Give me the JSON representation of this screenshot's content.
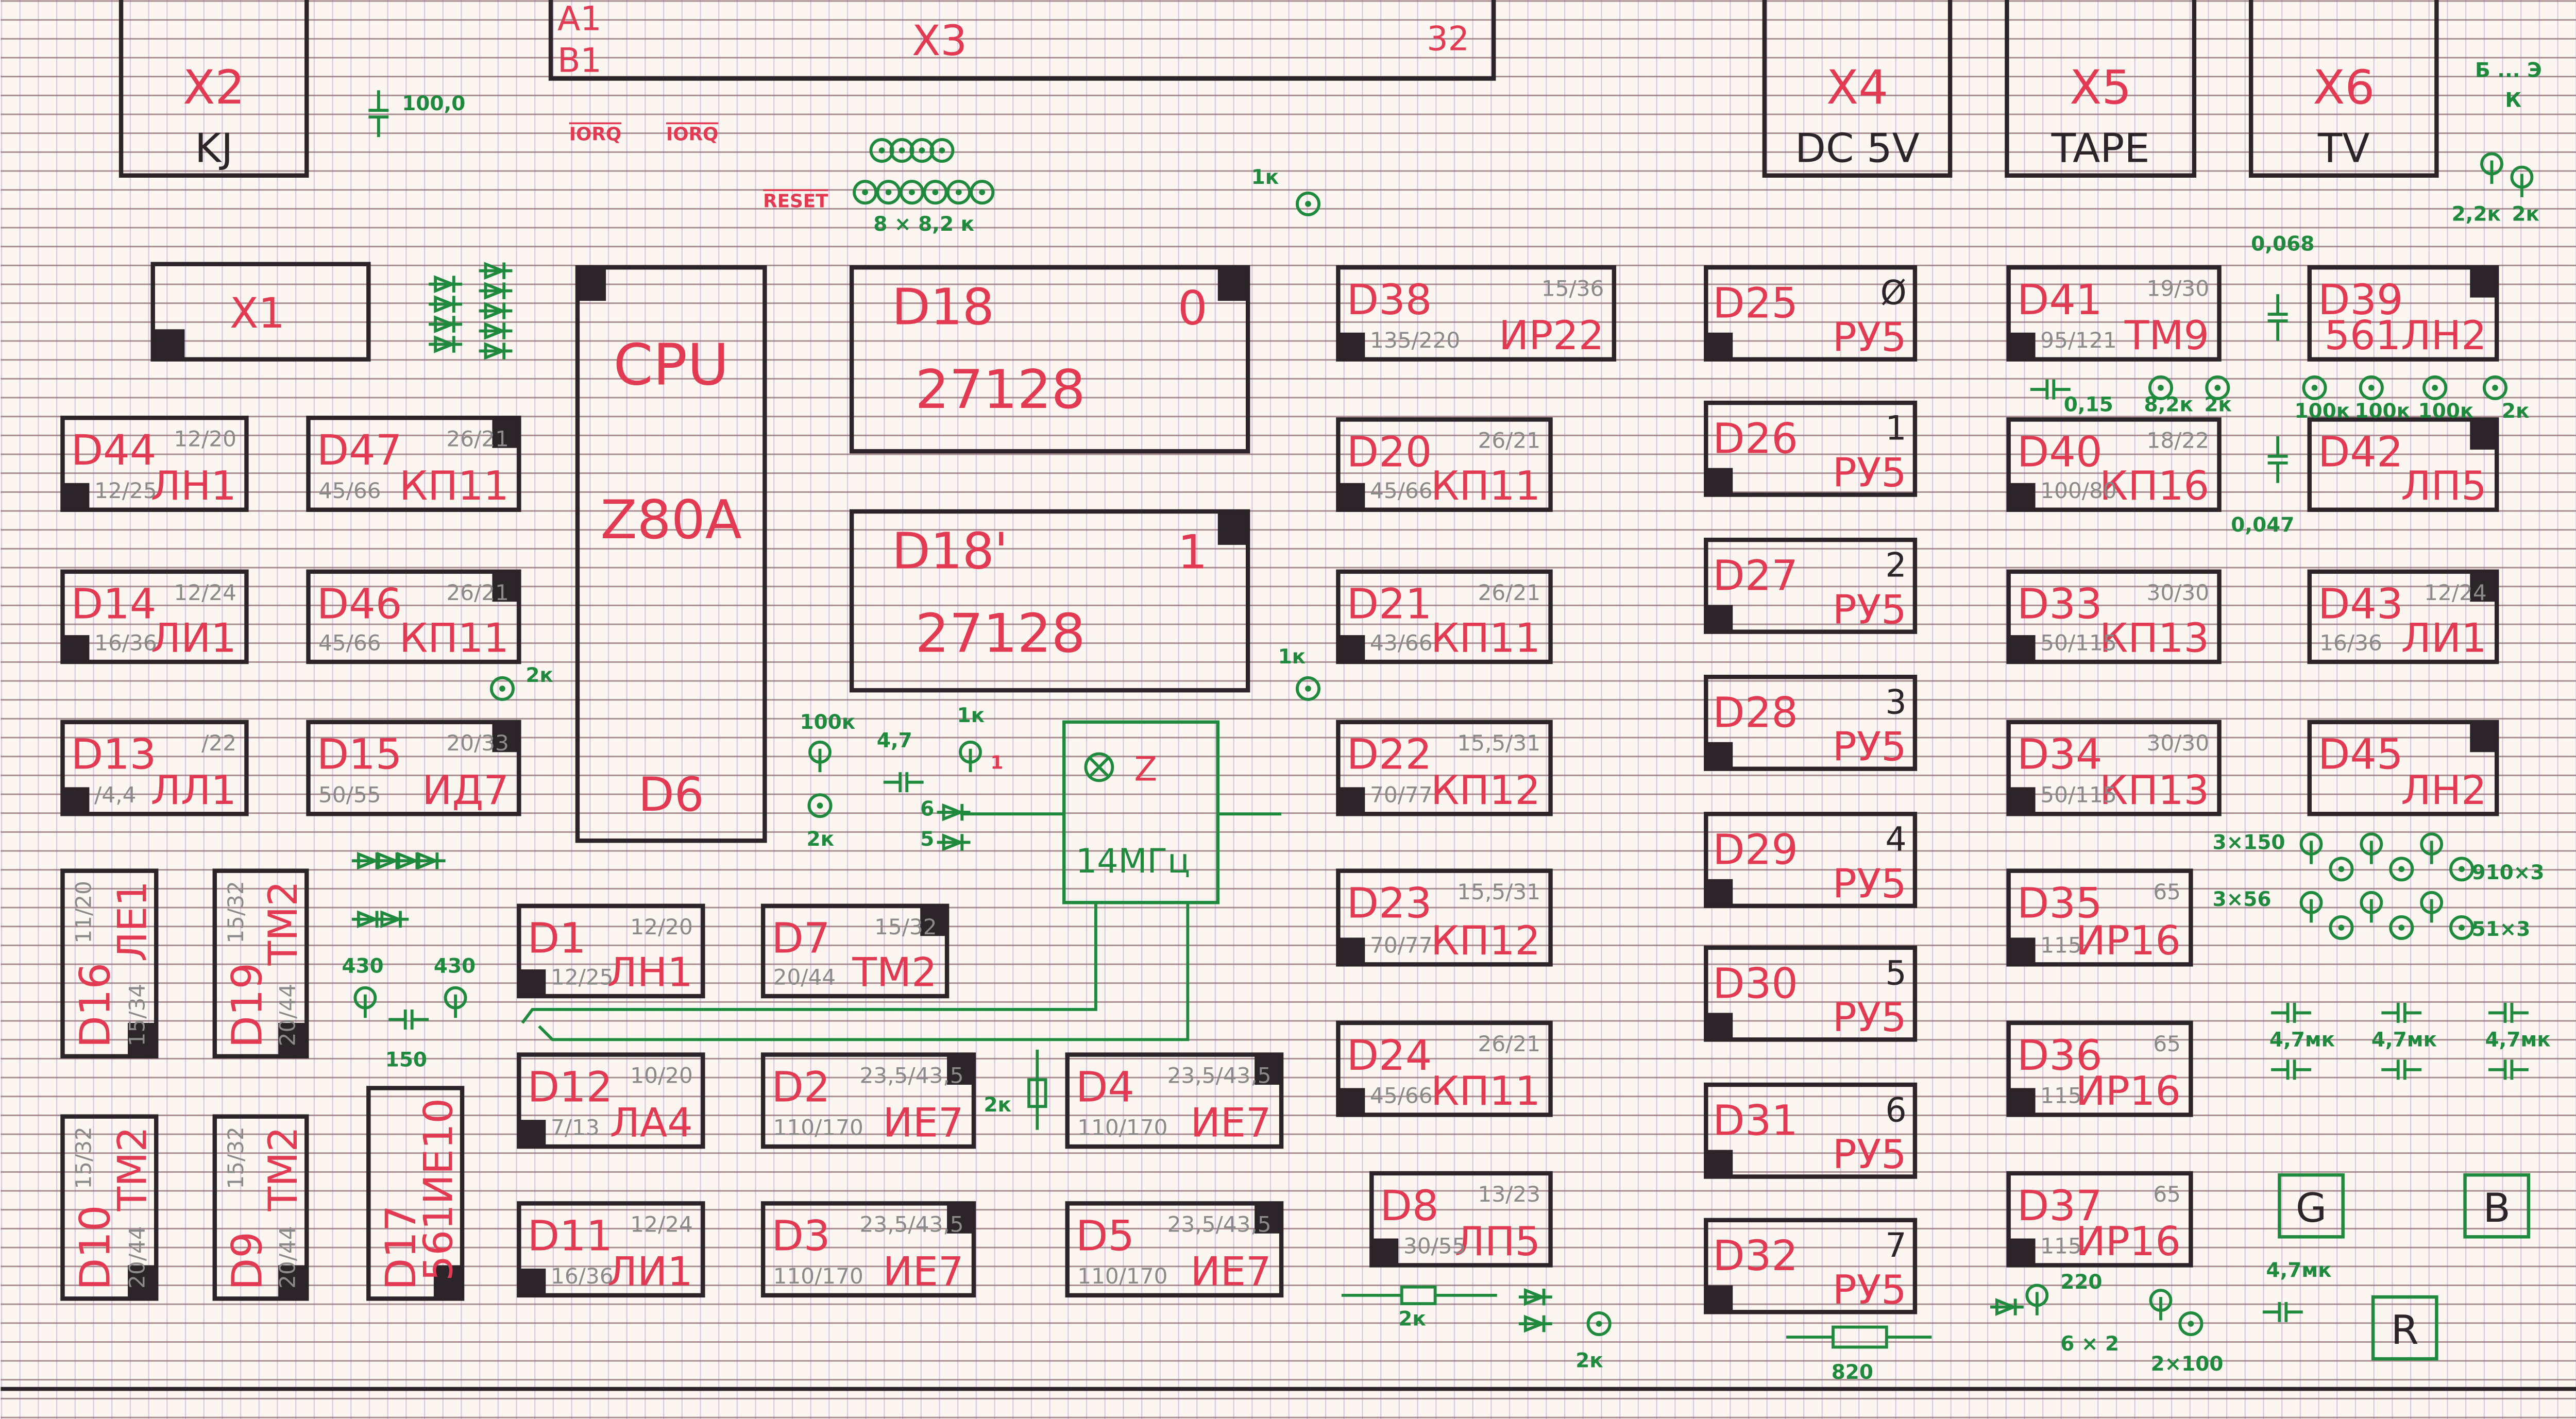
{
  "colors": {
    "paper": "#fbf6ef",
    "ink_red": "#e23a52",
    "ink_black": "#2b2428",
    "ink_green": "#1f8a3e",
    "ink_pencil": "#8a8a8a"
  },
  "connectors": [
    {
      "id": "X2",
      "label": "KJ"
    },
    {
      "id": "X4",
      "label": "DC 5V"
    },
    {
      "id": "X5",
      "label": "TAPE"
    },
    {
      "id": "X6",
      "label": "TV"
    }
  ],
  "x1": {
    "id": "X1"
  },
  "x3": {
    "id": "X3",
    "pin_a": "A1",
    "pin_b": "B1",
    "count": "32"
  },
  "cpu": {
    "title": "CPU",
    "model": "Z80A",
    "ref": "D6"
  },
  "roms": [
    {
      "id": "D18",
      "part": "27128",
      "index": "0"
    },
    {
      "id": "D18'",
      "part": "27128",
      "index": "1"
    }
  ],
  "quartz": {
    "symbol": "Z",
    "freq": "14МГц"
  },
  "chips": [
    {
      "id": "D44",
      "type": "ЛН1",
      "top": "12/20",
      "bottom": "12/25"
    },
    {
      "id": "D47",
      "type": "КП11",
      "top": "26/21",
      "bottom": "45/66"
    },
    {
      "id": "D14",
      "type": "ЛИ1",
      "top": "12/24",
      "bottom": "16/36"
    },
    {
      "id": "D46",
      "type": "КП11",
      "top": "26/21",
      "bottom": "45/66"
    },
    {
      "id": "D13",
      "type": "ЛЛ1",
      "top": "/22",
      "bottom": "/4,4"
    },
    {
      "id": "D15",
      "type": "ИД7",
      "top": "20/33",
      "bottom": "50/55"
    },
    {
      "id": "D1",
      "type": "ЛН1",
      "top": "12/20",
      "bottom": "12/25"
    },
    {
      "id": "D7",
      "type": "ТМ2",
      "top": "15/32",
      "bottom": "20/44"
    },
    {
      "id": "D12",
      "type": "ЛА4",
      "top": "10/20",
      "bottom": "7/13"
    },
    {
      "id": "D2",
      "type": "ИЕ7",
      "top": "23,5/43,5",
      "bottom": "110/170"
    },
    {
      "id": "D4",
      "type": "ИЕ7",
      "top": "23,5/43,5",
      "bottom": "110/170"
    },
    {
      "id": "D11",
      "type": "ЛИ1",
      "top": "12/24",
      "bottom": "16/36"
    },
    {
      "id": "D3",
      "type": "ИЕ7",
      "top": "23,5/43,5",
      "bottom": "110/170"
    },
    {
      "id": "D5",
      "type": "ИЕ7",
      "top": "23,5/43,5",
      "bottom": "110/170"
    },
    {
      "id": "D38",
      "type": "ИР22",
      "top": "15/36",
      "bottom": "135/220"
    },
    {
      "id": "D20",
      "type": "КП11",
      "top": "26/21",
      "bottom": "45/66"
    },
    {
      "id": "D21",
      "type": "КП11",
      "top": "26/21",
      "bottom": "43/66"
    },
    {
      "id": "D22",
      "type": "КП12",
      "top": "15,5/31",
      "bottom": "70/77"
    },
    {
      "id": "D23",
      "type": "КП12",
      "top": "15,5/31",
      "bottom": "70/77"
    },
    {
      "id": "D24",
      "type": "КП11",
      "top": "26/21",
      "bottom": "45/66"
    },
    {
      "id": "D8",
      "type": "ЛП5",
      "top": "13/23",
      "bottom": "30/55"
    },
    {
      "id": "D41",
      "type": "ТМ9",
      "top": "19/30",
      "bottom": "95/121"
    },
    {
      "id": "D39",
      "type": "561ЛН2"
    },
    {
      "id": "D40",
      "type": "КП16",
      "top": "18/22",
      "bottom": "100/80"
    },
    {
      "id": "D42",
      "type": "ЛП5"
    },
    {
      "id": "D33",
      "type": "КП13",
      "top": "30/30",
      "bottom": "50/115"
    },
    {
      "id": "D43",
      "type": "ЛИ1",
      "top": "12/24",
      "bottom": "16/36"
    },
    {
      "id": "D34",
      "type": "КП13",
      "top": "30/30",
      "bottom": "50/115"
    },
    {
      "id": "D45",
      "type": "ЛН2"
    },
    {
      "id": "D35",
      "type": "ИР16",
      "top": "65",
      "bottom": "115"
    },
    {
      "id": "D36",
      "type": "ИР16",
      "top": "65",
      "bottom": "115"
    },
    {
      "id": "D37",
      "type": "ИР16",
      "top": "65",
      "bottom": "115"
    }
  ],
  "vchips": [
    {
      "id": "D16",
      "type": "ЛЕ1",
      "top": "11/20",
      "bottom": "15/34"
    },
    {
      "id": "D19",
      "type": "ТМ2",
      "top": "15/32",
      "bottom": "20/44"
    },
    {
      "id": "D10",
      "type": "ТМ2",
      "top": "15/32",
      "bottom": "20/44"
    },
    {
      "id": "D9",
      "type": "ТМ2",
      "top": "15/32",
      "bottom": "20/44"
    },
    {
      "id": "D17",
      "type": "561ИЕ10"
    }
  ],
  "ram": [
    {
      "id": "D25",
      "type": "РУ5",
      "bank": "Ø"
    },
    {
      "id": "D26",
      "type": "РУ5",
      "bank": "1"
    },
    {
      "id": "D27",
      "type": "РУ5",
      "bank": "2"
    },
    {
      "id": "D28",
      "type": "РУ5",
      "bank": "3"
    },
    {
      "id": "D29",
      "type": "РУ5",
      "bank": "4"
    },
    {
      "id": "D30",
      "type": "РУ5",
      "bank": "5"
    },
    {
      "id": "D31",
      "type": "РУ5",
      "bank": "6"
    },
    {
      "id": "D32",
      "type": "РУ5",
      "bank": "7"
    }
  ],
  "rgb": [
    "G",
    "B",
    "R"
  ],
  "signals": [
    "IORQ",
    "IORQ",
    "RESET",
    "1"
  ],
  "annotations": [
    "100,0",
    "8 × 8,2 к",
    "1к",
    "2к",
    "100к",
    "4,7",
    "1к",
    "2к",
    "6",
    "5",
    "1к",
    "430",
    "430",
    "150",
    "2к",
    "2к",
    "2к",
    "0,068",
    "0,047",
    "0,15",
    "8,2к",
    "2к",
    "100к",
    "100к",
    "100к",
    "2к",
    "2,2к",
    "2к",
    "3×150",
    "910×3",
    "3×56",
    "51×3",
    "4,7мк",
    "4,7мк",
    "4,7мк",
    "4,7мк",
    "220",
    "6 × 2",
    "2×100",
    "820",
    "Б ... Э",
    "К"
  ]
}
